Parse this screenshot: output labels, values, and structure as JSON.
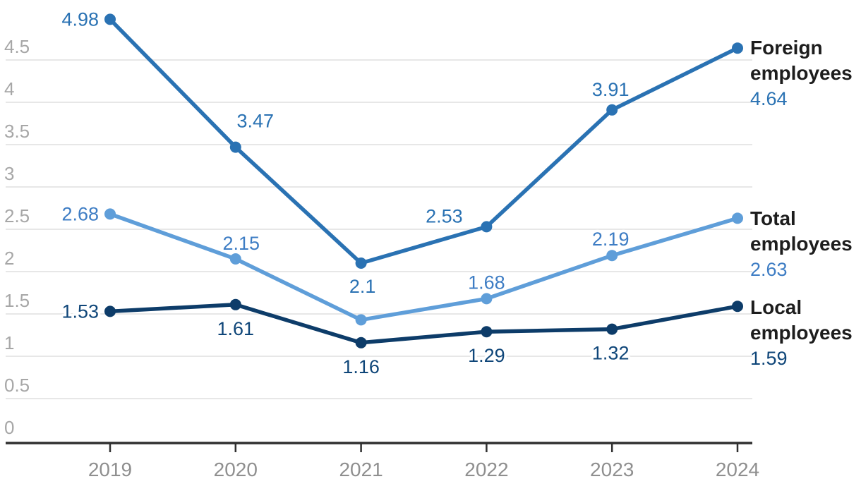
{
  "chart_data": {
    "type": "line",
    "title": "",
    "xlabel": "",
    "ylabel": "",
    "x_categories": [
      "2019",
      "2020",
      "2021",
      "2022",
      "2023",
      "2024"
    ],
    "y_ticks": [
      "0",
      "0.5",
      "1",
      "1.5",
      "2",
      "2.5",
      "3",
      "3.5",
      "4",
      "4.5"
    ],
    "y_axis_range": [
      0,
      5.1
    ],
    "grid": "horizontal",
    "legend_position": "right-of-line-ends",
    "colors": {
      "gridline": "#e7e7e7",
      "axis_line": "#2f2f2f",
      "tick_mark": "#2f2f2f",
      "y_tick_text": "#a7a7a7",
      "x_tick_text": "#8f8f8f",
      "legend_text": "#1d1d1d",
      "background": "#ffffff"
    },
    "series": [
      {
        "name": "Foreign employees",
        "legend_value": "4.64",
        "color": "#2a72b3",
        "label_color": "#2a72b3",
        "values": [
          4.98,
          3.47,
          2.1,
          2.53,
          3.91,
          4.64
        ],
        "point_labels": [
          {
            "text": "4.98",
            "anchor": "end",
            "dx": -16,
            "dy": 9
          },
          {
            "text": "3.47",
            "anchor": "middle",
            "dx": 28,
            "dy": -28
          },
          {
            "text": "2.1",
            "anchor": "middle",
            "dx": 2,
            "dy": 42
          },
          {
            "text": "2.53",
            "anchor": "middle",
            "dx": -60,
            "dy": -6
          },
          {
            "text": "3.91",
            "anchor": "middle",
            "dx": -2,
            "dy": -20
          },
          null
        ]
      },
      {
        "name": "Total employees",
        "legend_value": "2.63",
        "color": "#5f9ed9",
        "label_color": "#3e7dc4",
        "values": [
          2.68,
          2.15,
          1.43,
          1.68,
          2.19,
          2.63
        ],
        "point_labels": [
          {
            "text": "2.68",
            "anchor": "end",
            "dx": -16,
            "dy": 9
          },
          {
            "text": "2.15",
            "anchor": "middle",
            "dx": 8,
            "dy": -13
          },
          null,
          {
            "text": "1.68",
            "anchor": "middle",
            "dx": 0,
            "dy": -14
          },
          {
            "text": "2.19",
            "anchor": "middle",
            "dx": -2,
            "dy": -14
          },
          null
        ]
      },
      {
        "name": "Local employees",
        "legend_value": "1.59",
        "color": "#0d3c69",
        "label_color": "#0f4679",
        "values": [
          1.53,
          1.61,
          1.16,
          1.29,
          1.32,
          1.59
        ],
        "point_labels": [
          {
            "text": "1.53",
            "anchor": "end",
            "dx": -16,
            "dy": 9
          },
          {
            "text": "1.61",
            "anchor": "middle",
            "dx": 0,
            "dy": 43
          },
          {
            "text": "1.16",
            "anchor": "middle",
            "dx": 0,
            "dy": 43
          },
          {
            "text": "1.29",
            "anchor": "middle",
            "dx": 0,
            "dy": 43
          },
          {
            "text": "1.32",
            "anchor": "middle",
            "dx": -2,
            "dy": 43
          },
          null
        ]
      }
    ]
  }
}
